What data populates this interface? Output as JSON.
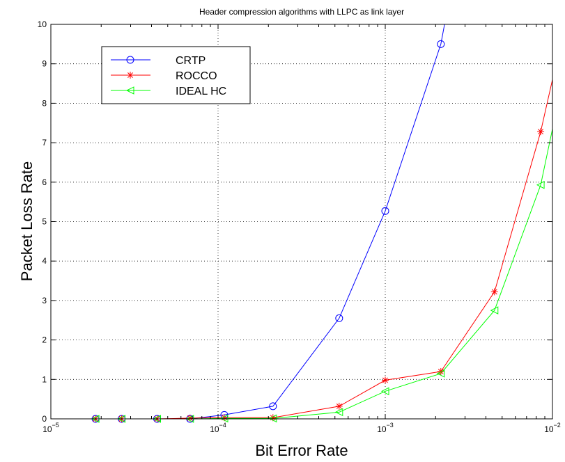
{
  "chart_data": {
    "type": "line",
    "title": "Header compression algorithms with LLPC as link layer",
    "xlabel": "Bit Error Rate",
    "ylabel": "Packet Loss Rate",
    "xscale": "log",
    "xlim": [
      1e-05,
      0.01
    ],
    "ylim": [
      0,
      10
    ],
    "grid": true,
    "legend_position": "top-left",
    "x_ticks": [
      {
        "value": 1e-05,
        "base": "10",
        "exp": "−5"
      },
      {
        "value": 0.0001,
        "base": "10",
        "exp": "−4"
      },
      {
        "value": 0.001,
        "base": "10",
        "exp": "−3"
      },
      {
        "value": 0.01,
        "base": "10",
        "exp": "−2"
      }
    ],
    "y_ticks": [
      "0",
      "1",
      "2",
      "3",
      "4",
      "5",
      "6",
      "7",
      "8",
      "9",
      "10"
    ],
    "series": [
      {
        "name": "CRTP",
        "color": "#0000ff",
        "marker": "circle",
        "points": [
          [
            1.85e-05,
            0
          ],
          [
            2.65e-05,
            0
          ],
          [
            4.32e-05,
            0
          ],
          [
            6.8e-05,
            0
          ],
          [
            0.000109,
            0.1
          ],
          [
            0.000213,
            0.32
          ],
          [
            0.00053,
            2.55
          ],
          [
            0.001,
            5.27
          ],
          [
            0.00215,
            9.5
          ],
          [
            0.00238,
            10.5
          ]
        ]
      },
      {
        "name": "ROCCO",
        "color": "#ff0000",
        "marker": "star",
        "points": [
          [
            1.85e-05,
            0
          ],
          [
            2.65e-05,
            0
          ],
          [
            4.32e-05,
            0
          ],
          [
            6.8e-05,
            0.02
          ],
          [
            0.000109,
            0.03
          ],
          [
            0.000213,
            0.03
          ],
          [
            0.00053,
            0.32
          ],
          [
            0.001,
            0.98
          ],
          [
            0.00215,
            1.2
          ],
          [
            0.0045,
            3.22
          ],
          [
            0.0085,
            7.28
          ],
          [
            0.01,
            8.6
          ]
        ]
      },
      {
        "name": "IDEAL HC",
        "color": "#00ff00",
        "marker": "triangle-left",
        "points": [
          [
            1.85e-05,
            0
          ],
          [
            2.65e-05,
            0
          ],
          [
            4.32e-05,
            0
          ],
          [
            6.8e-05,
            0
          ],
          [
            0.000109,
            0.01
          ],
          [
            0.000213,
            0.01
          ],
          [
            0.00053,
            0.17
          ],
          [
            0.001,
            0.7
          ],
          [
            0.00215,
            1.15
          ],
          [
            0.0045,
            2.75
          ],
          [
            0.0085,
            5.93
          ],
          [
            0.01,
            7.35
          ]
        ]
      }
    ]
  }
}
